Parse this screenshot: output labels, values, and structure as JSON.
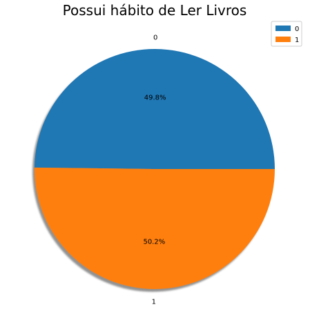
{
  "chart_data": {
    "type": "pie",
    "title": "Possui hábito de Ler Livros",
    "categories": [
      "0",
      "1"
    ],
    "values": [
      49.8,
      50.2
    ],
    "value_labels": [
      "49.8%",
      "50.2%"
    ],
    "colors": [
      "#1f77b4",
      "#ff7f0e"
    ],
    "shadow": true,
    "legend": {
      "placement": "top-right",
      "entries": [
        "0",
        "1"
      ]
    }
  }
}
